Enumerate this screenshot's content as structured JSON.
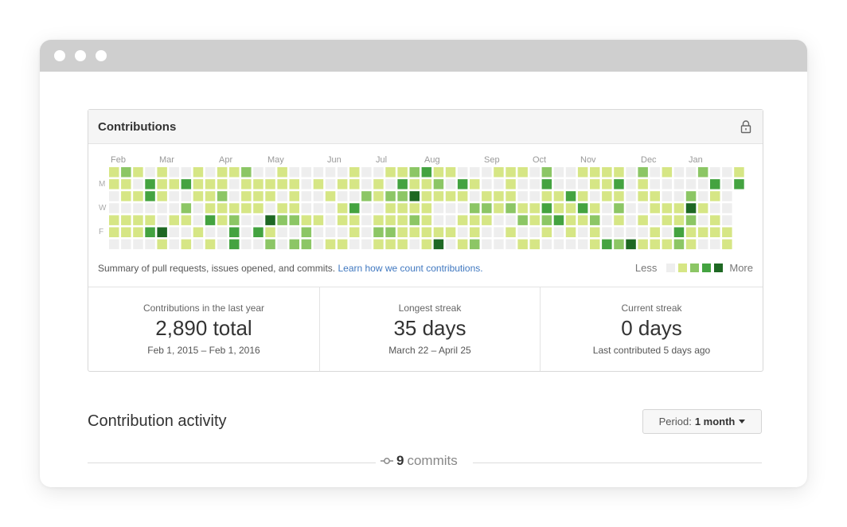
{
  "panel": {
    "title": "Contributions"
  },
  "calendar": {
    "months": [
      "Feb",
      "Mar",
      "Apr",
      "May",
      "Jun",
      "Jul",
      "Aug",
      "Sep",
      "Oct",
      "Nov",
      "Dec",
      "Jan"
    ],
    "day_labels": [
      "M",
      "W",
      "F"
    ],
    "colors": [
      "#eeeeee",
      "#d6e685",
      "#8cc665",
      "#44a340",
      "#1e6823"
    ],
    "summary_text": "Summary of pull requests, issues opened, and commits.",
    "learn_link": "Learn how we count contributions.",
    "legend_less": "Less",
    "legend_more": "More"
  },
  "stats": [
    {
      "label": "Contributions in the last year",
      "value": "2,890 total",
      "range": "Feb 1, 2015 – Feb 1, 2016"
    },
    {
      "label": "Longest streak",
      "value": "35 days",
      "range": "March 22 – April 25"
    },
    {
      "label": "Current streak",
      "value": "0 days",
      "range": "Last contributed 5 days ago"
    }
  ],
  "activity": {
    "title": "Contribution activity",
    "period_label": "Period:",
    "period_value": "1 month"
  },
  "commits": {
    "count": "9",
    "label": "commits"
  }
}
